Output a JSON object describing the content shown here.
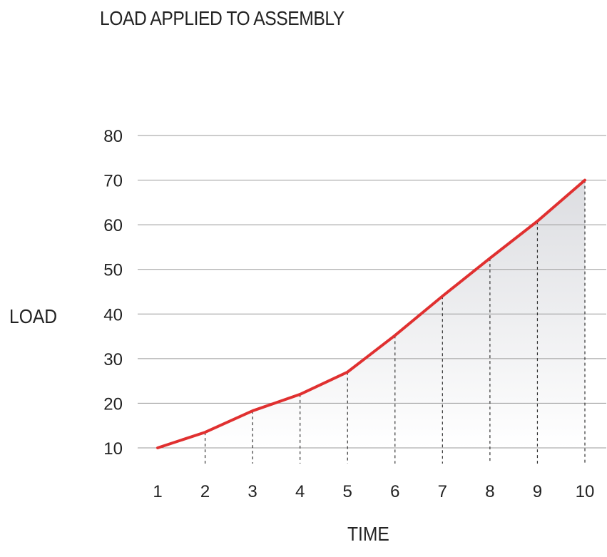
{
  "chart_data": {
    "type": "area",
    "title": "LOAD APPLIED TO ASSEMBLY",
    "xlabel": "TIME",
    "ylabel": "LOAD",
    "x": [
      1,
      2,
      3,
      4,
      5,
      6,
      7,
      8,
      9,
      10
    ],
    "series": [
      {
        "values": [
          10,
          13.5,
          18.3,
          22,
          27,
          35.2,
          44,
          52.5,
          60.8,
          70
        ],
        "color": "#e03030"
      }
    ],
    "xlim": [
      1,
      10
    ],
    "ylim": [
      10,
      80
    ],
    "yticks": [
      10,
      20,
      30,
      40,
      50,
      60,
      70,
      80
    ],
    "xticks": [
      1,
      2,
      3,
      4,
      5,
      6,
      7,
      8,
      9,
      10
    ],
    "grid": true,
    "fill_color_top": "#dcdde1",
    "fill_color_bottom": "#ffffff",
    "gridline_color": "#9a9a9a",
    "dropline_color": "#333333"
  }
}
